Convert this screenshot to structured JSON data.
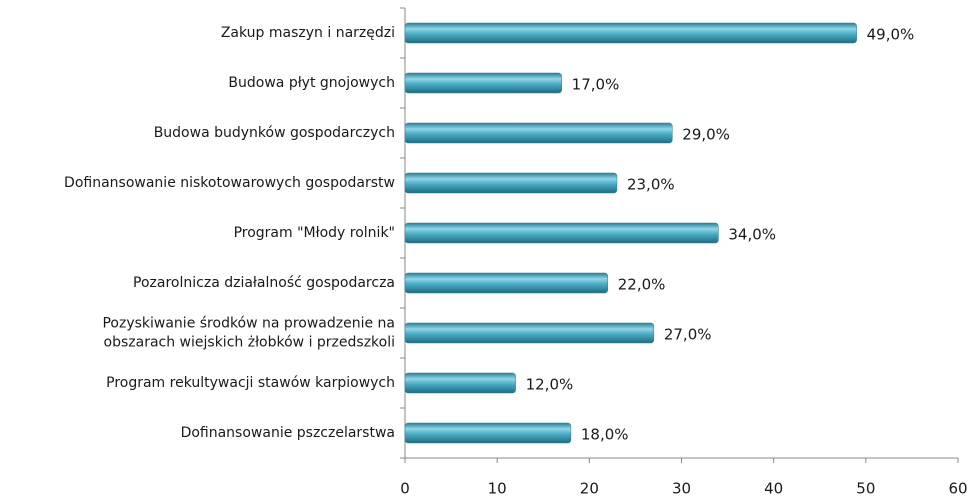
{
  "chart_data": {
    "type": "barh",
    "categories": [
      "Zakup maszyn i narzędzi",
      "Budowa płyt gnojowych",
      "Budowa budynków gospodarczych",
      "Dofinansowanie niskotowarowych gospodarstw",
      "Program \"Młody rolnik\"",
      "Pozarolnicza działalność gospodarcza",
      "Pozyskiwanie środków na prowadzenie na\nobszarach wiejskich żłobków i przedszkoli",
      "Program rekultywacji stawów karpiowych",
      "Dofinansowanie pszczelarstwa"
    ],
    "values": [
      49,
      17,
      29,
      23,
      34,
      22,
      27,
      12,
      18
    ],
    "value_labels": [
      "49,0%",
      "17,0%",
      "29,0%",
      "23,0%",
      "34,0%",
      "22,0%",
      "27,0%",
      "12,0%",
      "18,0%"
    ],
    "color": "#4bacc6",
    "xlim": [
      0,
      60
    ],
    "xticks": [
      0,
      10,
      20,
      30,
      40,
      50,
      60
    ],
    "grid": false
  }
}
